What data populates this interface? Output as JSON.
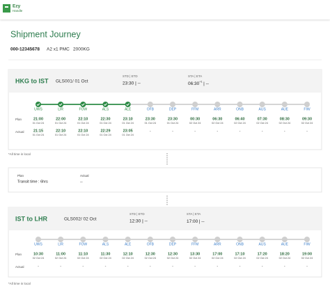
{
  "header": {
    "logo_top": "Ezy",
    "logo_bottom": "Handle"
  },
  "title": "Shipment Journey",
  "shipment": {
    "awb": "000-12345678",
    "pieces": "A2 x1 PMC",
    "weight": "2000KG"
  },
  "row_labels": {
    "plan": "Plan",
    "actual": "Actual"
  },
  "segments": [
    {
      "route": "HKG to IST",
      "flight": "GLS001/ 01 Oct",
      "std_label": "STD | ETD",
      "std_value": "23:30 | --",
      "sta_label": "STA | ETA",
      "sta_time": "06:30",
      "sta_day_offset": "+1",
      "sta_rest": "| --",
      "footnote": "*All time in local",
      "stops": [
        {
          "code": "UWS",
          "done": true,
          "plan_time": "21:00",
          "plan_date": "01 Oct 24",
          "actual_time": "21:15",
          "actual_date": "01 Oct 24"
        },
        {
          "code": "LIR",
          "done": true,
          "plan_time": "22:00",
          "plan_date": "01 Oct 24",
          "actual_time": "22:10",
          "actual_date": "01 Oct 24"
        },
        {
          "code": "FOW",
          "done": true,
          "plan_time": "22:10",
          "plan_date": "01 Oct 24",
          "actual_time": "22:10",
          "actual_date": "01 Oct 24"
        },
        {
          "code": "ALS",
          "done": true,
          "plan_time": "22:30",
          "plan_date": "01 Oct 24",
          "actual_time": "22:29",
          "actual_date": "01 Oct 24"
        },
        {
          "code": "ALE",
          "done": true,
          "plan_time": "23:10",
          "plan_date": "01 Oct 24",
          "actual_time": "23:05",
          "actual_date": "01 Oct 24"
        },
        {
          "code": "OFB",
          "done": false,
          "plan_time": "23:30",
          "plan_date": "01 Oct 24",
          "actual_time": "-",
          "actual_date": null
        },
        {
          "code": "DEP",
          "done": false,
          "plan_time": "23:30",
          "plan_date": "01 Oct 24",
          "actual_time": "-",
          "actual_date": null
        },
        {
          "code": "FFM",
          "done": false,
          "plan_time": "00:30",
          "plan_date": "02 Oct 24",
          "actual_time": "-",
          "actual_date": null
        },
        {
          "code": "ARR",
          "done": false,
          "plan_time": "06:30",
          "plan_date": "02 Oct 24",
          "actual_time": "-",
          "actual_date": null
        },
        {
          "code": "ONB",
          "done": false,
          "plan_time": "06:40",
          "plan_date": "02 Oct 24",
          "actual_time": "-",
          "actual_date": null
        },
        {
          "code": "AUS",
          "done": false,
          "plan_time": "07:30",
          "plan_date": "02 Oct 24",
          "actual_time": "-",
          "actual_date": null
        },
        {
          "code": "AUE",
          "done": false,
          "plan_time": "08:30",
          "plan_date": "02 Oct 24",
          "actual_time": "-",
          "actual_date": null
        },
        {
          "code": "FIW",
          "done": false,
          "plan_time": "09:30",
          "plan_date": "02 Oct 24",
          "actual_time": "-",
          "actual_date": null
        }
      ]
    },
    {
      "route": "IST to LHR",
      "flight": "GLS002/ 02 Oct",
      "std_label": "STD | ETD",
      "std_value": "12:30 | --",
      "sta_label": "STA | ETA",
      "sta_time": "17:00",
      "sta_day_offset": null,
      "sta_rest": "| --",
      "footnote": "*All time in local",
      "stops": [
        {
          "code": "UWS",
          "done": false,
          "plan_time": "10:30",
          "plan_date": "02 Oct 24",
          "actual_time": "-",
          "actual_date": null
        },
        {
          "code": "LIR",
          "done": false,
          "plan_time": "11:00",
          "plan_date": "02 Oct 24",
          "actual_time": "-",
          "actual_date": null
        },
        {
          "code": "FOW",
          "done": false,
          "plan_time": "11:10",
          "plan_date": "02 Oct 24",
          "actual_time": "-",
          "actual_date": null
        },
        {
          "code": "ALS",
          "done": false,
          "plan_time": "11:30",
          "plan_date": "02 Oct 24",
          "actual_time": "-",
          "actual_date": null
        },
        {
          "code": "ALE",
          "done": false,
          "plan_time": "12:10",
          "plan_date": "02 Oct 24",
          "actual_time": "-",
          "actual_date": null
        },
        {
          "code": "OFB",
          "done": false,
          "plan_time": "12:30",
          "plan_date": "02 Oct 24",
          "actual_time": "-",
          "actual_date": null
        },
        {
          "code": "DEP",
          "done": false,
          "plan_time": "12:30",
          "plan_date": "02 Oct 24",
          "actual_time": "-",
          "actual_date": null
        },
        {
          "code": "FFM",
          "done": false,
          "plan_time": "13:30",
          "plan_date": "02 Oct 24",
          "actual_time": "-",
          "actual_date": null
        },
        {
          "code": "ARR",
          "done": false,
          "plan_time": "17:00",
          "plan_date": "02 Oct 24",
          "actual_time": "-",
          "actual_date": null
        },
        {
          "code": "ONB",
          "done": false,
          "plan_time": "17:10",
          "plan_date": "02 Oct 24",
          "actual_time": "-",
          "actual_date": null
        },
        {
          "code": "AUS",
          "done": false,
          "plan_time": "17:20",
          "plan_date": "02 Oct 24",
          "actual_time": "-",
          "actual_date": null
        },
        {
          "code": "AUE",
          "done": false,
          "plan_time": "18:20",
          "plan_date": "02 Oct 24",
          "actual_time": "-",
          "actual_date": null
        },
        {
          "code": "FIW",
          "done": false,
          "plan_time": "19:00",
          "plan_date": "02 Oct 24",
          "actual_time": "-",
          "actual_date": null
        }
      ]
    }
  ],
  "transit": {
    "plan_label": "Plan",
    "plan_value": "Transit time : 6hrs",
    "actual_label": "Actual",
    "actual_value": "--"
  }
}
